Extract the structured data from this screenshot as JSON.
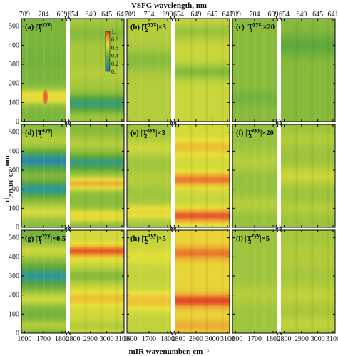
{
  "chart_data": {
    "type": "heatmap",
    "title": "",
    "top_axis_label": "VSFG wavelength, nm",
    "top_ticks": [
      "709",
      "704",
      "699",
      "654",
      "649",
      "645",
      "641"
    ],
    "x_label": "mIR wavenumber, cm⁻¹",
    "x_ticks": [
      "1600",
      "1700",
      "1800",
      "2800",
      "2900",
      "3000",
      "3100"
    ],
    "y_label": "d",
    "y_label_sub": "PTCDI−C",
    "y_label_sub2": "8",
    "y_label_unit": ", nm",
    "y_ticks": [
      "0",
      "100",
      "200",
      "300",
      "400",
      "500"
    ],
    "y_range": [
      0,
      540
    ],
    "x_range_left": [
      1580,
      1840
    ],
    "x_range_right": [
      2760,
      3120
    ],
    "colorbar": {
      "ticks": [
        "1.",
        "0.8",
        "0.6",
        "0.4",
        "0.2",
        "0."
      ]
    },
    "colors": [
      "#3060c8",
      "#2f9a8c",
      "#5aa63c",
      "#9cc43c",
      "#e8e23a",
      "#f0a030",
      "#e03a28"
    ],
    "panels": [
      {
        "label": "(a) |T",
        "sup": "yyz",
        "sub": "1",
        "tail": "|",
        "left": {
          "base": 0.42,
          "bands": [
            [
              130,
              0.7,
              40
            ],
            [
              330,
              0.4,
              60
            ]
          ],
          "spot": [
            1722,
            130,
            0.95
          ]
        },
        "right": {
          "base": 0.52,
          "bands": [
            [
              95,
              0.22,
              45
            ],
            [
              250,
              0.55,
              40
            ],
            [
              460,
              0.45,
              40
            ]
          ]
        }
      },
      {
        "label": "(b) |T",
        "sup": "yyz",
        "sub": "2",
        "tail": "|×3",
        "left": {
          "base": 0.55,
          "bands": [
            [
              130,
              0.55,
              40
            ],
            [
              320,
              0.45,
              60
            ]
          ]
        },
        "right": {
          "base": 0.6,
          "bands": [
            [
              95,
              0.6,
              45
            ],
            [
              260,
              0.45,
              40
            ],
            [
              470,
              0.5,
              45
            ]
          ]
        }
      },
      {
        "label": "(c) |T",
        "sup": "yyz",
        "sub": "3",
        "tail": "|×20",
        "left": {
          "base": 0.45,
          "bands": [
            [
              120,
              0.4,
              40
            ]
          ]
        },
        "right": {
          "base": 0.45,
          "bands": [
            [
              400,
              0.35,
              60
            ]
          ]
        }
      },
      {
        "label": "(d) |T",
        "sup": "zyy",
        "sub": "1",
        "tail": "|",
        "left": {
          "base": 0.45,
          "bands": [
            [
              80,
              0.62,
              40
            ],
            [
              200,
              0.15,
              38
            ],
            [
              350,
              0.1,
              45
            ],
            [
              460,
              0.55,
              40
            ]
          ]
        },
        "right": {
          "base": 0.45,
          "bands": [
            [
              60,
              0.7,
              35
            ],
            [
              230,
              0.78,
              35
            ],
            [
              340,
              0.2,
              35
            ],
            [
              440,
              0.55,
              40
            ]
          ]
        }
      },
      {
        "label": "(e) |T",
        "sup": "zyy",
        "sub": "2",
        "tail": "|×3",
        "left": {
          "base": 0.5,
          "bands": [
            [
              80,
              0.7,
              40
            ],
            [
              250,
              0.55,
              50
            ],
            [
              420,
              0.6,
              50
            ]
          ]
        },
        "right": {
          "base": 0.62,
          "bands": [
            [
              60,
              0.95,
              35
            ],
            [
              250,
              0.9,
              35
            ],
            [
              420,
              0.75,
              40
            ],
            [
              150,
              0.6,
              30
            ]
          ]
        }
      },
      {
        "label": "(f) |T",
        "sup": "zyy",
        "sub": "3",
        "tail": "|×20",
        "left": {
          "base": 0.48,
          "bands": [
            [
              120,
              0.55,
              50
            ],
            [
              350,
              0.55,
              60
            ]
          ]
        },
        "right": {
          "base": 0.5,
          "bands": [
            [
              100,
              0.55,
              40
            ],
            [
              270,
              0.6,
              50
            ],
            [
              460,
              0.55,
              40
            ]
          ]
        }
      },
      {
        "label": "(g) |T",
        "sup": "zyy",
        "sub": "1",
        "tail": "|×0.5",
        "left": {
          "base": 0.4,
          "bands": [
            [
              40,
              0.55,
              30
            ],
            [
              180,
              0.6,
              40
            ],
            [
              300,
              0.15,
              40
            ],
            [
              430,
              0.6,
              45
            ]
          ]
        },
        "right": {
          "base": 0.62,
          "bands": [
            [
              40,
              0.55,
              30
            ],
            [
              180,
              0.75,
              35
            ],
            [
              300,
              0.45,
              40
            ],
            [
              430,
              0.95,
              30
            ]
          ]
        }
      },
      {
        "label": "(h) |T",
        "sup": "zyy",
        "sub": "2",
        "tail": "|×5",
        "left": {
          "base": 0.58,
          "bands": [
            [
              170,
              0.75,
              50
            ],
            [
              400,
              0.65,
              50
            ]
          ]
        },
        "right": {
          "base": 0.7,
          "bands": [
            [
              40,
              0.8,
              30
            ],
            [
              170,
              0.98,
              35
            ],
            [
              300,
              0.7,
              40
            ],
            [
              420,
              0.9,
              35
            ]
          ]
        }
      },
      {
        "label": "(i) |T",
        "sup": "zyy",
        "sub": "3",
        "tail": "|×5",
        "left": {
          "base": 0.5,
          "bands": [
            [
              200,
              0.55,
              60
            ]
          ]
        },
        "right": {
          "base": 0.52,
          "bands": [
            [
              50,
              0.58,
              40
            ],
            [
              200,
              0.58,
              50
            ],
            [
              400,
              0.55,
              60
            ]
          ]
        }
      }
    ]
  }
}
